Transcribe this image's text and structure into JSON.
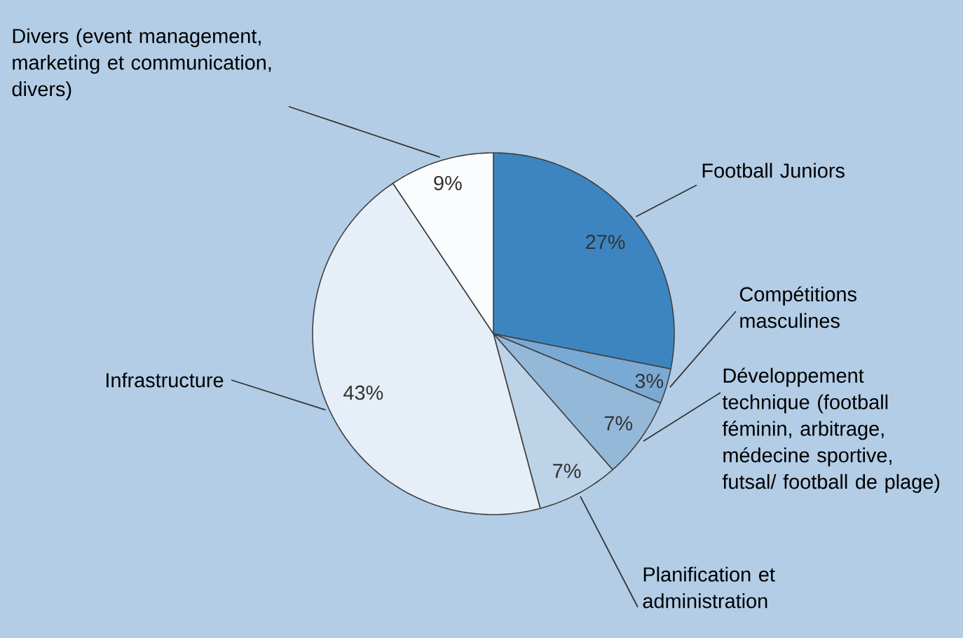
{
  "chart_data": {
    "type": "pie",
    "categories": [
      "Football Juniors",
      "Compétitions masculines",
      "Développement technique (football féminin, arbitrage, médecine sportive, futsal/ football de plage)",
      "Planification et administration",
      "Infrastructure",
      "Divers (event management, marketing et communication, divers)"
    ],
    "values": [
      27,
      3,
      7,
      7,
      43,
      9
    ],
    "value_labels": [
      "27%",
      "3%",
      "7%",
      "7%",
      "43%",
      "9%"
    ],
    "colors": [
      "#3d85c0",
      "#7aaad4",
      "#94b8d8",
      "#bcd3e8",
      "#e6eff7",
      "#fafcfe"
    ]
  }
}
